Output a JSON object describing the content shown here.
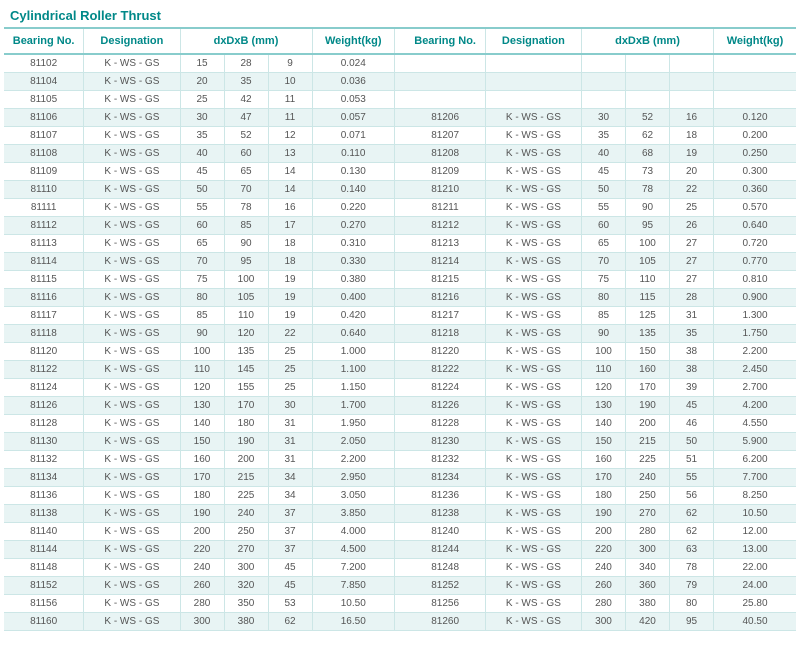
{
  "title": "Cylindrical Roller Thrust",
  "headers": {
    "bearing": "Bearing No.",
    "designation": "Designation",
    "dxdxb": "dxDxB (mm)",
    "weight": "Weight(kg)"
  },
  "colors": {
    "header_text": "#008888",
    "border_strong": "#88cccc",
    "border_light": "#cce6e6",
    "row_alt_bg": "#e8f4f4",
    "text": "#555555",
    "background": "#ffffff"
  },
  "typography": {
    "title_fontsize": 13,
    "header_fontsize": 11,
    "cell_fontsize": 10,
    "font_family": "Arial"
  },
  "designation_value": "K - WS - GS",
  "columns_left": [
    "bearing",
    "designation",
    "d",
    "D",
    "B",
    "weight"
  ],
  "columns_right": [
    "bearing",
    "designation",
    "d",
    "D",
    "B",
    "weight"
  ],
  "rows": [
    {
      "l": [
        "81102",
        "K - WS - GS",
        "15",
        "28",
        "9",
        "0.024"
      ],
      "r": [
        "",
        "",
        "",
        "",
        "",
        ""
      ]
    },
    {
      "l": [
        "81104",
        "K - WS - GS",
        "20",
        "35",
        "10",
        "0.036"
      ],
      "r": [
        "",
        "",
        "",
        "",
        "",
        ""
      ]
    },
    {
      "l": [
        "81105",
        "K - WS - GS",
        "25",
        "42",
        "11",
        "0.053"
      ],
      "r": [
        "",
        "",
        "",
        "",
        "",
        ""
      ]
    },
    {
      "l": [
        "81106",
        "K - WS - GS",
        "30",
        "47",
        "11",
        "0.057"
      ],
      "r": [
        "81206",
        "K - WS - GS",
        "30",
        "52",
        "16",
        "0.120"
      ]
    },
    {
      "l": [
        "81107",
        "K - WS - GS",
        "35",
        "52",
        "12",
        "0.071"
      ],
      "r": [
        "81207",
        "K - WS - GS",
        "35",
        "62",
        "18",
        "0.200"
      ]
    },
    {
      "l": [
        "81108",
        "K - WS - GS",
        "40",
        "60",
        "13",
        "0.110"
      ],
      "r": [
        "81208",
        "K - WS - GS",
        "40",
        "68",
        "19",
        "0.250"
      ]
    },
    {
      "l": [
        "81109",
        "K - WS - GS",
        "45",
        "65",
        "14",
        "0.130"
      ],
      "r": [
        "81209",
        "K - WS - GS",
        "45",
        "73",
        "20",
        "0.300"
      ]
    },
    {
      "l": [
        "81110",
        "K - WS - GS",
        "50",
        "70",
        "14",
        "0.140"
      ],
      "r": [
        "81210",
        "K - WS - GS",
        "50",
        "78",
        "22",
        "0.360"
      ]
    },
    {
      "l": [
        "81111",
        "K - WS - GS",
        "55",
        "78",
        "16",
        "0.220"
      ],
      "r": [
        "81211",
        "K - WS - GS",
        "55",
        "90",
        "25",
        "0.570"
      ]
    },
    {
      "l": [
        "81112",
        "K - WS - GS",
        "60",
        "85",
        "17",
        "0.270"
      ],
      "r": [
        "81212",
        "K - WS - GS",
        "60",
        "95",
        "26",
        "0.640"
      ]
    },
    {
      "l": [
        "81113",
        "K - WS - GS",
        "65",
        "90",
        "18",
        "0.310"
      ],
      "r": [
        "81213",
        "K - WS - GS",
        "65",
        "100",
        "27",
        "0.720"
      ]
    },
    {
      "l": [
        "81114",
        "K - WS - GS",
        "70",
        "95",
        "18",
        "0.330"
      ],
      "r": [
        "81214",
        "K - WS - GS",
        "70",
        "105",
        "27",
        "0.770"
      ]
    },
    {
      "l": [
        "81115",
        "K - WS - GS",
        "75",
        "100",
        "19",
        "0.380"
      ],
      "r": [
        "81215",
        "K - WS - GS",
        "75",
        "110",
        "27",
        "0.810"
      ]
    },
    {
      "l": [
        "81116",
        "K - WS - GS",
        "80",
        "105",
        "19",
        "0.400"
      ],
      "r": [
        "81216",
        "K - WS - GS",
        "80",
        "115",
        "28",
        "0.900"
      ]
    },
    {
      "l": [
        "81117",
        "K - WS - GS",
        "85",
        "110",
        "19",
        "0.420"
      ],
      "r": [
        "81217",
        "K - WS - GS",
        "85",
        "125",
        "31",
        "1.300"
      ]
    },
    {
      "l": [
        "81118",
        "K - WS - GS",
        "90",
        "120",
        "22",
        "0.640"
      ],
      "r": [
        "81218",
        "K - WS - GS",
        "90",
        "135",
        "35",
        "1.750"
      ]
    },
    {
      "l": [
        "81120",
        "K - WS - GS",
        "100",
        "135",
        "25",
        "1.000"
      ],
      "r": [
        "81220",
        "K - WS - GS",
        "100",
        "150",
        "38",
        "2.200"
      ]
    },
    {
      "l": [
        "81122",
        "K - WS - GS",
        "110",
        "145",
        "25",
        "1.100"
      ],
      "r": [
        "81222",
        "K - WS - GS",
        "110",
        "160",
        "38",
        "2.450"
      ]
    },
    {
      "l": [
        "81124",
        "K - WS - GS",
        "120",
        "155",
        "25",
        "1.150"
      ],
      "r": [
        "81224",
        "K - WS - GS",
        "120",
        "170",
        "39",
        "2.700"
      ]
    },
    {
      "l": [
        "81126",
        "K - WS - GS",
        "130",
        "170",
        "30",
        "1.700"
      ],
      "r": [
        "81226",
        "K - WS - GS",
        "130",
        "190",
        "45",
        "4.200"
      ]
    },
    {
      "l": [
        "81128",
        "K - WS - GS",
        "140",
        "180",
        "31",
        "1.950"
      ],
      "r": [
        "81228",
        "K - WS - GS",
        "140",
        "200",
        "46",
        "4.550"
      ]
    },
    {
      "l": [
        "81130",
        "K - WS - GS",
        "150",
        "190",
        "31",
        "2.050"
      ],
      "r": [
        "81230",
        "K - WS - GS",
        "150",
        "215",
        "50",
        "5.900"
      ]
    },
    {
      "l": [
        "81132",
        "K - WS - GS",
        "160",
        "200",
        "31",
        "2.200"
      ],
      "r": [
        "81232",
        "K - WS - GS",
        "160",
        "225",
        "51",
        "6.200"
      ]
    },
    {
      "l": [
        "81134",
        "K - WS - GS",
        "170",
        "215",
        "34",
        "2.950"
      ],
      "r": [
        "81234",
        "K - WS - GS",
        "170",
        "240",
        "55",
        "7.700"
      ]
    },
    {
      "l": [
        "81136",
        "K - WS - GS",
        "180",
        "225",
        "34",
        "3.050"
      ],
      "r": [
        "81236",
        "K - WS - GS",
        "180",
        "250",
        "56",
        "8.250"
      ]
    },
    {
      "l": [
        "81138",
        "K - WS - GS",
        "190",
        "240",
        "37",
        "3.850"
      ],
      "r": [
        "81238",
        "K - WS - GS",
        "190",
        "270",
        "62",
        "10.50"
      ]
    },
    {
      "l": [
        "81140",
        "K - WS - GS",
        "200",
        "250",
        "37",
        "4.000"
      ],
      "r": [
        "81240",
        "K - WS - GS",
        "200",
        "280",
        "62",
        "12.00"
      ]
    },
    {
      "l": [
        "81144",
        "K - WS - GS",
        "220",
        "270",
        "37",
        "4.500"
      ],
      "r": [
        "81244",
        "K - WS - GS",
        "220",
        "300",
        "63",
        "13.00"
      ]
    },
    {
      "l": [
        "81148",
        "K - WS - GS",
        "240",
        "300",
        "45",
        "7.200"
      ],
      "r": [
        "81248",
        "K - WS - GS",
        "240",
        "340",
        "78",
        "22.00"
      ]
    },
    {
      "l": [
        "81152",
        "K - WS - GS",
        "260",
        "320",
        "45",
        "7.850"
      ],
      "r": [
        "81252",
        "K - WS - GS",
        "260",
        "360",
        "79",
        "24.00"
      ]
    },
    {
      "l": [
        "81156",
        "K - WS - GS",
        "280",
        "350",
        "53",
        "10.50"
      ],
      "r": [
        "81256",
        "K - WS - GS",
        "280",
        "380",
        "80",
        "25.80"
      ]
    },
    {
      "l": [
        "81160",
        "K - WS - GS",
        "300",
        "380",
        "62",
        "16.50"
      ],
      "r": [
        "81260",
        "K - WS - GS",
        "300",
        "420",
        "95",
        "40.50"
      ]
    }
  ]
}
